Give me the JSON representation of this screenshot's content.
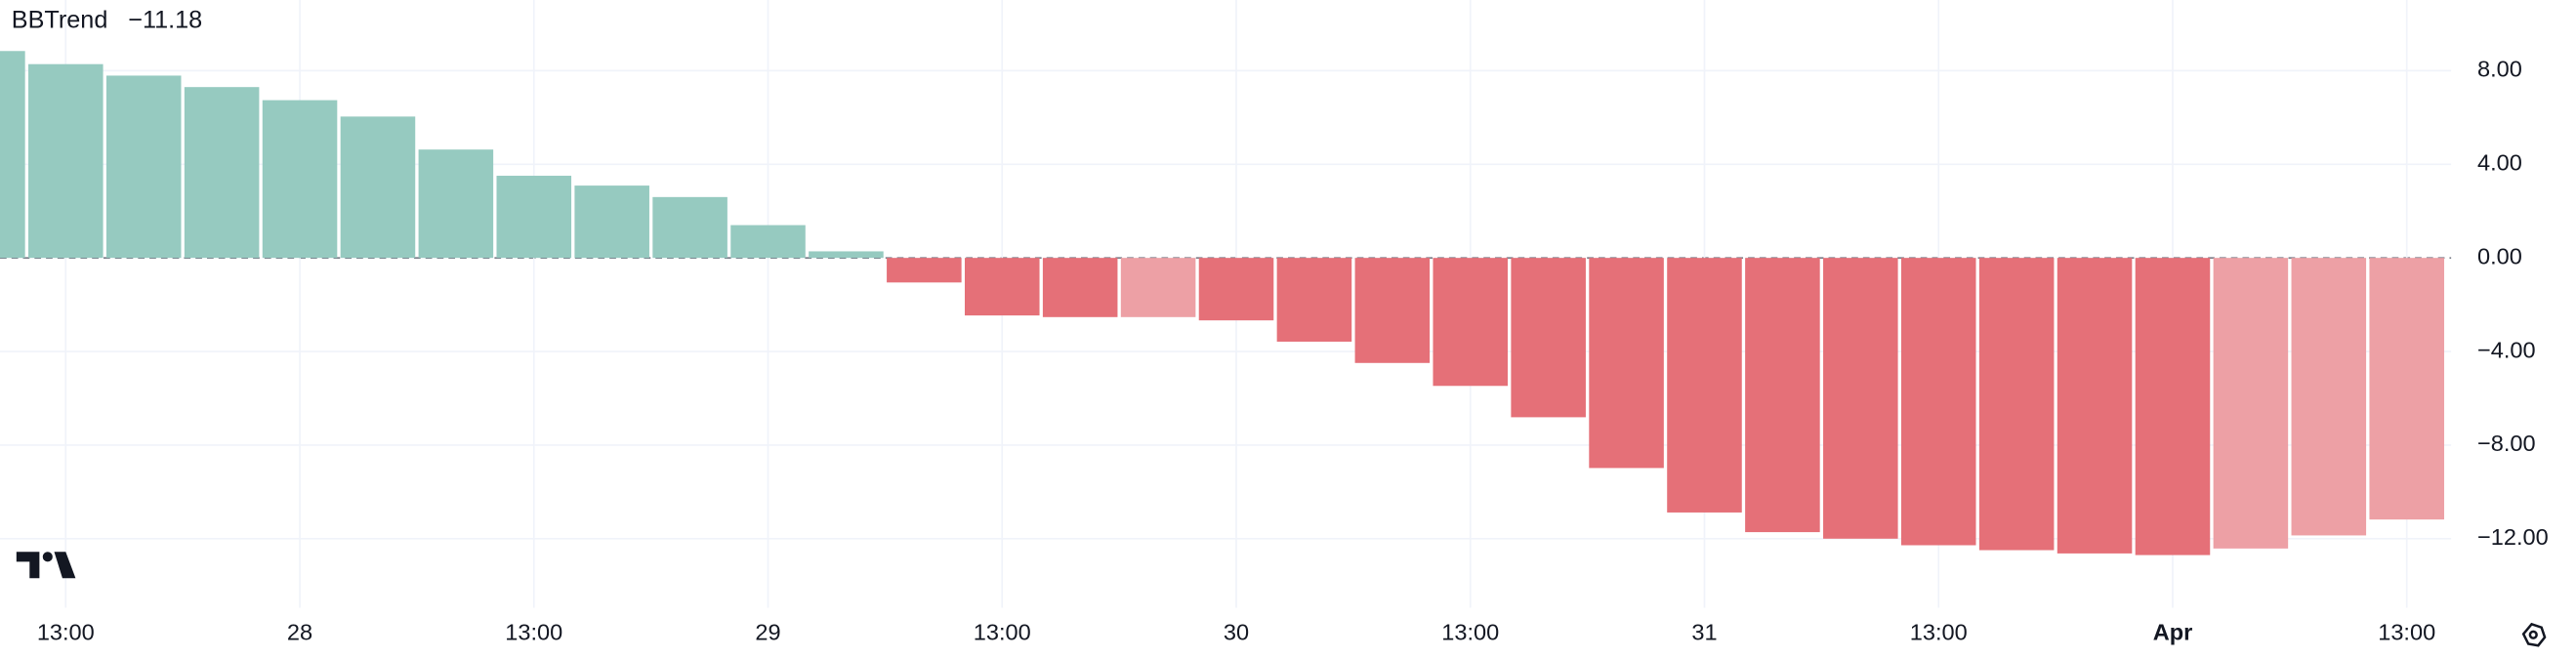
{
  "chart_data": {
    "type": "bar",
    "title": "BBTrend",
    "last_value_label": "−11.18",
    "last_value_color": "#e5505a",
    "categories": [
      null,
      "13:00",
      null,
      null,
      "28",
      null,
      null,
      "13:00",
      null,
      null,
      "29",
      null,
      null,
      "13:00",
      null,
      null,
      "30",
      null,
      null,
      "13:00",
      null,
      null,
      "31",
      null,
      null,
      "13:00",
      null,
      null,
      "Apr",
      null,
      null,
      "13:00"
    ],
    "bold_categories": [
      "Apr"
    ],
    "values": [
      8.84,
      8.28,
      7.79,
      7.3,
      6.74,
      6.04,
      4.63,
      3.51,
      3.09,
      2.6,
      1.4,
      0.28,
      -1.05,
      -2.46,
      -2.53,
      -2.53,
      -2.67,
      -3.58,
      -4.49,
      -5.47,
      -6.81,
      -8.98,
      -10.88,
      -11.72,
      -12.0,
      -12.28,
      -12.49,
      -12.63,
      -12.7,
      -12.42,
      -11.86,
      -11.18
    ],
    "colors": [
      "#96cac0",
      "#96cac0",
      "#96cac0",
      "#96cac0",
      "#96cac0",
      "#96cac0",
      "#96cac0",
      "#96cac0",
      "#96cac0",
      "#96cac0",
      "#96cac0",
      "#96cac0",
      "#e57078",
      "#e57078",
      "#e57078",
      "#eda0a5",
      "#e57078",
      "#e57078",
      "#e57078",
      "#e57078",
      "#e57078",
      "#e57078",
      "#e57078",
      "#e57078",
      "#e57078",
      "#e57078",
      "#e57078",
      "#e57078",
      "#e57078",
      "#eda0a5",
      "#eda0a5",
      "#eda0a5"
    ],
    "ylim": [
      -14.95,
      11.02
    ],
    "yticks": [
      {
        "value": 8,
        "label": "8.00"
      },
      {
        "value": 4,
        "label": "4.00"
      },
      {
        "value": 0,
        "label": "0.00"
      },
      {
        "value": -4,
        "label": "−4.00"
      },
      {
        "value": -8,
        "label": "−8.00"
      },
      {
        "value": -12,
        "label": "−12.00"
      }
    ],
    "grid": true,
    "zero_line": "dashed"
  }
}
